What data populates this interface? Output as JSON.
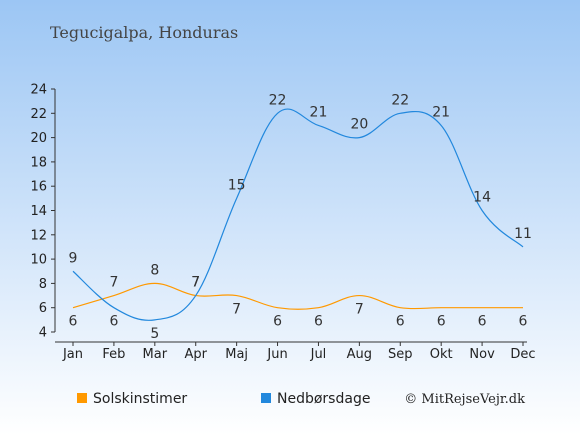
{
  "chart_data": {
    "type": "line",
    "title": "Tegucigalpa, Honduras",
    "categories": [
      "Jan",
      "Feb",
      "Mar",
      "Apr",
      "Maj",
      "Jun",
      "Jul",
      "Aug",
      "Sep",
      "Okt",
      "Nov",
      "Dec"
    ],
    "ylim": [
      4,
      24
    ],
    "yticks": [
      4,
      6,
      8,
      10,
      12,
      14,
      16,
      18,
      20,
      22,
      24
    ],
    "series": [
      {
        "name": "Solskinstimer",
        "color": "#ff9900",
        "values": [
          6,
          7,
          8,
          7,
          7,
          6,
          6,
          7,
          6,
          6,
          6,
          6
        ]
      },
      {
        "name": "Nedbørsdage",
        "color": "#2288dd",
        "values": [
          9,
          6,
          5,
          7,
          15,
          22,
          21,
          20,
          22,
          21,
          14,
          11
        ]
      }
    ],
    "legend_position": "bottom",
    "grid": false
  },
  "copyright": "© MitRejseVejr.dk"
}
